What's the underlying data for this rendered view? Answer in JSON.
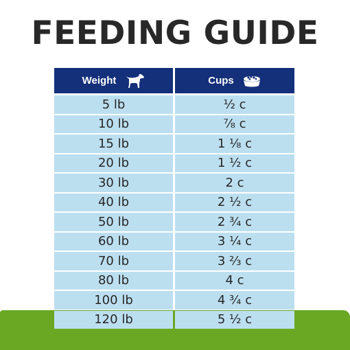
{
  "title": "FEEDING GUIDE",
  "table": {
    "headers": {
      "weight": "Weight",
      "cups": "Cups",
      "weight_icon": "dog-icon",
      "cups_icon": "food-bowl-icon"
    },
    "rows": [
      {
        "weight": "5 lb",
        "cups": "½ c"
      },
      {
        "weight": "10 lb",
        "cups": "⅞ c"
      },
      {
        "weight": "15 lb",
        "cups": "1 ⅛ c"
      },
      {
        "weight": "20 lb",
        "cups": "1 ½ c"
      },
      {
        "weight": "30 lb",
        "cups": "2 c"
      },
      {
        "weight": "40 lb",
        "cups": "2 ½ c"
      },
      {
        "weight": "50 lb",
        "cups": "2 ¾ c"
      },
      {
        "weight": "60 lb",
        "cups": "3 ¼ c"
      },
      {
        "weight": "70 lb",
        "cups": "3 ⅔ c"
      },
      {
        "weight": "80 lb",
        "cups": "4 c"
      },
      {
        "weight": "100 lb",
        "cups": "4 ¾ c"
      },
      {
        "weight": "120 lb",
        "cups": "5 ½ c"
      }
    ]
  },
  "colors": {
    "header_bg": "#14307a",
    "cell_bg": "#bcdff0",
    "title_text": "#282828",
    "grass": "#6aa823"
  }
}
